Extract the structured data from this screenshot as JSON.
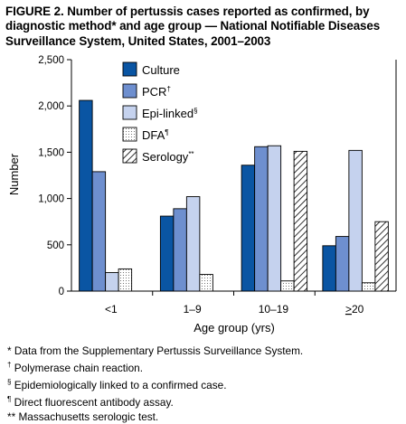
{
  "title": "FIGURE 2. Number of pertussis cases reported as confirmed, by diagnostic method* and age group — National Notifiable Diseases Surveillance System, United States, 2001–2003",
  "chart_data": {
    "type": "bar",
    "xlabel": "Age group (yrs)",
    "ylabel": "Number",
    "ylim": [
      0,
      2500
    ],
    "yticks": [
      "0",
      "500",
      "1,000",
      "1,500",
      "2,000",
      "2,500"
    ],
    "ytick_values": [
      0,
      500,
      1000,
      1500,
      2000,
      2500
    ],
    "categories": [
      "<1",
      "1–9",
      "10–19",
      "≥20"
    ],
    "legend_position": "top-center",
    "grid": false,
    "series": [
      {
        "name": "Culture",
        "marker": "",
        "fill": "#0a55a3",
        "pattern": "solid",
        "values": [
          2060,
          810,
          1360,
          490
        ]
      },
      {
        "name": "PCR",
        "marker": "†",
        "fill": "#6e8fcf",
        "pattern": "solid",
        "values": [
          1290,
          890,
          1560,
          590
        ]
      },
      {
        "name": "Epi-linked",
        "marker": "§",
        "fill": "#c5d2ee",
        "pattern": "solid",
        "values": [
          200,
          1020,
          1570,
          1520
        ]
      },
      {
        "name": "DFA",
        "marker": "¶",
        "fill": "#ffffff",
        "pattern": "dots",
        "values": [
          240,
          180,
          110,
          90
        ]
      },
      {
        "name": "Serology",
        "marker": "**",
        "fill": "#ffffff",
        "pattern": "hatch",
        "values": [
          null,
          null,
          1510,
          750
        ]
      }
    ]
  },
  "footnotes": [
    {
      "symbol": "*",
      "text": "Data from the Supplementary Pertussis Surveillance System."
    },
    {
      "symbol": "†",
      "text": "Polymerase chain reaction."
    },
    {
      "symbol": "§",
      "text": "Epidemiologically linked to a confirmed case."
    },
    {
      "symbol": "¶",
      "text": "Direct fluorescent antibody assay."
    },
    {
      "symbol": "**",
      "text": "Massachusetts serologic test."
    }
  ]
}
